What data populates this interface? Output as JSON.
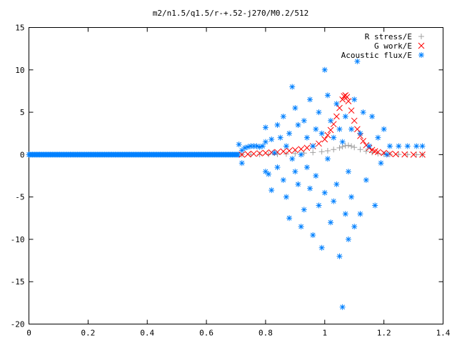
{
  "chart_data": {
    "type": "scatter",
    "title": "m2/n1.5/q1.5/r-+.52-j270/M0.2/512",
    "xlabel": "",
    "ylabel": "",
    "xlim": [
      0,
      1.4
    ],
    "ylim": [
      -20,
      15
    ],
    "xticks": [
      "0",
      "0.2",
      "0.4",
      "0.6",
      "0.8",
      "1",
      "1.2",
      "1.4"
    ],
    "yticks": [
      "15",
      "10",
      "5",
      "0",
      "-5",
      "-10",
      "-15",
      "-20"
    ],
    "grid": false,
    "legend": "top-right",
    "series": [
      {
        "name": "R stress/E",
        "marker": "plus",
        "color": "#a0a0a0",
        "x": [
          0.72,
          0.75,
          0.78,
          0.81,
          0.84,
          0.87,
          0.9,
          0.93,
          0.96,
          0.99,
          1.01,
          1.03,
          1.05,
          1.06,
          1.07,
          1.08,
          1.09,
          1.1,
          1.12,
          1.14,
          1.16,
          1.18,
          1.2,
          1.22,
          1.25,
          1.28,
          1.31,
          1.33
        ],
        "y": [
          0.0,
          0.0,
          0.02,
          0.03,
          0.05,
          0.08,
          0.12,
          0.18,
          0.25,
          0.35,
          0.45,
          0.6,
          0.8,
          0.95,
          1.05,
          1.1,
          1.0,
          0.85,
          0.6,
          0.4,
          0.25,
          0.12,
          0.06,
          0.03,
          0.02,
          0.01,
          0.0,
          0.0
        ]
      },
      {
        "name": "G work/E",
        "marker": "cross",
        "color": "#ff0000",
        "x": [
          0.72,
          0.74,
          0.76,
          0.78,
          0.8,
          0.82,
          0.84,
          0.86,
          0.88,
          0.9,
          0.92,
          0.94,
          0.96,
          0.98,
          1.0,
          1.01,
          1.02,
          1.03,
          1.04,
          1.05,
          1.06,
          1.065,
          1.07,
          1.075,
          1.08,
          1.09,
          1.1,
          1.11,
          1.12,
          1.13,
          1.14,
          1.15,
          1.16,
          1.17,
          1.18,
          1.2,
          1.22,
          1.24,
          1.27,
          1.3,
          1.33
        ],
        "y": [
          0.0,
          0.05,
          0.1,
          0.15,
          0.2,
          0.25,
          0.3,
          0.38,
          0.45,
          0.55,
          0.65,
          0.8,
          1.0,
          1.3,
          1.8,
          2.3,
          2.9,
          3.6,
          4.5,
          5.5,
          6.5,
          6.9,
          7.0,
          6.8,
          6.3,
          5.2,
          4.0,
          3.0,
          2.2,
          1.6,
          1.1,
          0.8,
          0.55,
          0.4,
          0.3,
          0.2,
          0.1,
          0.05,
          0.02,
          0.0,
          0.0
        ]
      },
      {
        "name": "Acoustic flux/E",
        "marker": "star",
        "color": "#0080ff",
        "x": [
          0.71,
          0.72,
          0.72,
          0.73,
          0.74,
          0.75,
          0.76,
          0.77,
          0.78,
          0.79,
          0.8,
          0.8,
          0.8,
          0.81,
          0.82,
          0.82,
          0.83,
          0.84,
          0.84,
          0.85,
          0.86,
          0.86,
          0.87,
          0.87,
          0.88,
          0.88,
          0.89,
          0.89,
          0.9,
          0.9,
          0.91,
          0.91,
          0.92,
          0.92,
          0.93,
          0.93,
          0.94,
          0.94,
          0.95,
          0.95,
          0.96,
          0.96,
          0.97,
          0.97,
          0.98,
          0.98,
          0.99,
          0.99,
          1.0,
          1.0,
          1.01,
          1.01,
          1.02,
          1.02,
          1.03,
          1.03,
          1.04,
          1.04,
          1.05,
          1.05,
          1.06,
          1.06,
          1.07,
          1.07,
          1.08,
          1.08,
          1.09,
          1.09,
          1.1,
          1.1,
          1.11,
          1.12,
          1.12,
          1.13,
          1.14,
          1.15,
          1.16,
          1.17,
          1.18,
          1.19,
          1.2,
          1.21,
          1.22,
          1.25,
          1.28,
          1.31,
          1.33
        ],
        "y": [
          1.2,
          -1.0,
          0.5,
          0.8,
          0.9,
          1.0,
          1.0,
          1.0,
          0.9,
          1.0,
          -2.0,
          1.5,
          3.2,
          -2.3,
          1.8,
          -4.2,
          0.2,
          3.5,
          -1.5,
          2.0,
          -3.0,
          4.5,
          -5.0,
          1.0,
          2.5,
          -7.5,
          8.0,
          -0.5,
          5.5,
          -2.0,
          3.5,
          -3.5,
          0.0,
          -8.5,
          4.0,
          -6.5,
          2.0,
          -1.5,
          -4.0,
          6.5,
          1.0,
          -9.5,
          3.0,
          -2.5,
          5.0,
          -6.0,
          2.5,
          -11.0,
          10.0,
          -4.5,
          7.0,
          -0.5,
          4.0,
          -8.0,
          2.0,
          -5.5,
          6.0,
          -3.5,
          3.0,
          -12.0,
          1.5,
          -18.0,
          -7.0,
          4.5,
          -2.0,
          -10.0,
          3.0,
          -5.0,
          6.5,
          -8.5,
          11.0,
          2.5,
          -7.0,
          5.0,
          -3.0,
          1.0,
          4.5,
          -6.0,
          2.0,
          -1.0,
          3.0,
          0.0,
          1.0,
          1.0,
          1.0,
          1.0,
          1.0
        ]
      }
    ]
  }
}
